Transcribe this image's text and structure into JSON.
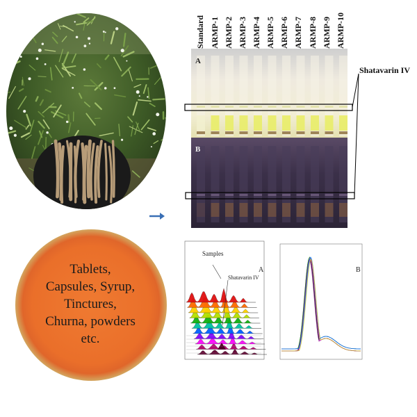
{
  "labels": {
    "standard": "Standard",
    "lanes": [
      "ARMP-1",
      "ARMP-2",
      "ARMP-3",
      "ARMP-4",
      "ARMP-5",
      "ARMP-6",
      "ARMP-7",
      "ARMP-8",
      "ARMP-9",
      "ARMP-10"
    ],
    "panel_a": "A",
    "panel_b": "B",
    "marker": "Shatavarin IV"
  },
  "products": {
    "lines": [
      "Tablets,",
      "Capsules, Syrup,",
      "Tinctures,",
      "Churna, powders",
      "etc."
    ]
  },
  "densitogram_a": {
    "panel_label": "A",
    "samples_label": "Samples",
    "marker_label": "Shatavarin IV"
  },
  "densitogram_b": {
    "panel_label": "B"
  },
  "colors": {
    "circle": "#ea6f2a",
    "halo": "#d9ee9e",
    "arrow": "#3a6fb5",
    "plate_a": "#e8e4c8",
    "plate_b": "#3a2f45"
  }
}
